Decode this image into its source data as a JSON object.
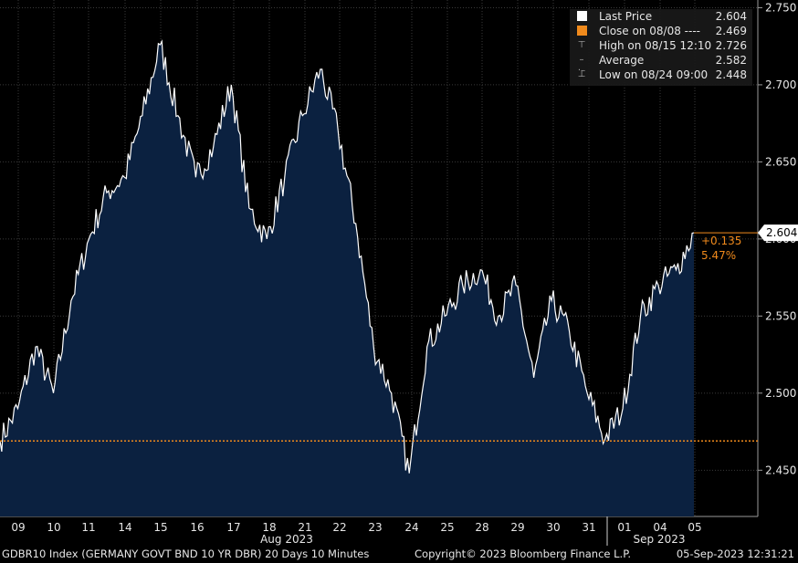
{
  "chart_data": {
    "type": "area",
    "y_ticks": [
      2.45,
      2.5,
      2.55,
      2.6,
      2.65,
      2.7,
      2.75
    ],
    "y_tick_labels": [
      "2.450",
      "2.500",
      "2.550",
      "2.600",
      "2.650",
      "2.700",
      "2.750"
    ],
    "ylim": [
      2.42,
      2.755
    ],
    "x_tick_labels": [
      "09",
      "10",
      "11",
      "14",
      "15",
      "16",
      "17",
      "18",
      "21",
      "22",
      "23",
      "24",
      "25",
      "28",
      "29",
      "30",
      "31",
      "01",
      "04",
      "05"
    ],
    "month_labels": [
      "Aug 2023",
      "Sep 2023"
    ],
    "series": [
      {
        "name": "Last Price",
        "x": [
          "08/08",
          "08/09",
          "08/09",
          "08/10",
          "08/10",
          "08/11",
          "08/11",
          "08/14",
          "08/14",
          "08/15",
          "08/15",
          "08/16",
          "08/16",
          "08/17",
          "08/17",
          "08/18",
          "08/18",
          "08/21",
          "08/21",
          "08/22",
          "08/22",
          "08/23",
          "08/23",
          "08/24",
          "08/24",
          "08/25",
          "08/25",
          "08/28",
          "08/28",
          "08/29",
          "08/29",
          "08/30",
          "08/30",
          "08/31",
          "08/31",
          "09/01",
          "09/01",
          "09/04",
          "09/04",
          "09/05"
        ],
        "values": [
          2.469,
          2.49,
          2.53,
          2.5,
          2.56,
          2.6,
          2.63,
          2.64,
          2.68,
          2.726,
          2.68,
          2.64,
          2.66,
          2.7,
          2.62,
          2.6,
          2.64,
          2.68,
          2.71,
          2.67,
          2.61,
          2.53,
          2.5,
          2.448,
          2.53,
          2.55,
          2.57,
          2.58,
          2.55,
          2.57,
          2.51,
          2.56,
          2.54,
          2.5,
          2.47,
          2.49,
          2.55,
          2.57,
          2.58,
          2.604
        ]
      }
    ],
    "close_line": 2.469,
    "last_value": 2.604,
    "change_label": "+0.135",
    "change_pct_label": "5.47%",
    "last_value_label": "2.604",
    "colors": {
      "area": "#0b2140",
      "line": "#ffffff",
      "close": "#f08a1c",
      "grid": "#3a3a3a"
    }
  },
  "legend": [
    {
      "label": "Last Price",
      "value": "2.604",
      "symbol": "white-square"
    },
    {
      "label": "Close on 08/08  ----",
      "value": "2.469",
      "symbol": "orange-square"
    },
    {
      "label": "High on 08/15 12:10",
      "value": "2.726",
      "symbol": "high-marker"
    },
    {
      "label": "Average",
      "value": "2.582",
      "symbol": "average-marker"
    },
    {
      "label": "Low on 08/24 09:00",
      "value": "2.448",
      "symbol": "low-marker"
    }
  ],
  "footer": {
    "left": "GDBR10 Index (GERMANY GOVT BND 10 YR DBR) 20 Days 10 Minutes",
    "center": "Copyright© 2023 Bloomberg Finance L.P.",
    "right": "05-Sep-2023 12:31:21"
  }
}
